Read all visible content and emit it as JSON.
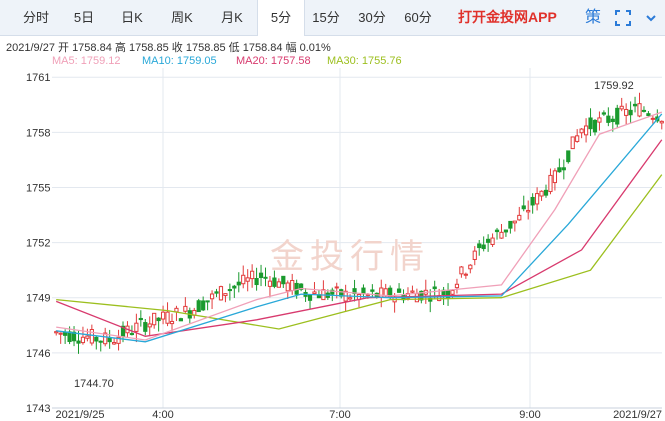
{
  "tabs": [
    {
      "label": "分时",
      "active": false
    },
    {
      "label": "5日",
      "active": false
    },
    {
      "label": "日K",
      "active": false
    },
    {
      "label": "周K",
      "active": false
    },
    {
      "label": "月K",
      "active": false
    },
    {
      "label": "5分",
      "active": true
    },
    {
      "label": "15分",
      "active": false
    },
    {
      "label": "30分",
      "active": false
    },
    {
      "label": "60分",
      "active": false
    }
  ],
  "promo_label": "打开金投网APP",
  "toolbar": {
    "strategy_label": "策",
    "strategy_icon": "strategy-icon",
    "fullscreen_icon": "fullscreen-icon"
  },
  "info": {
    "date": "2021/9/27",
    "open_label": "开",
    "open": "1758.84",
    "high_label": "高",
    "high": "1758.85",
    "close_label": "收",
    "close": "1758.85",
    "low_label": "低",
    "low": "1758.84",
    "change_label": "幅",
    "change": "0.01%"
  },
  "ma": {
    "ma5": {
      "label": "MA5:",
      "value": "1759.12",
      "color": "#f0a0b8"
    },
    "ma10": {
      "label": "MA10:",
      "value": "1759.05",
      "color": "#29a8d8"
    },
    "ma20": {
      "label": "MA20:",
      "value": "1757.58",
      "color": "#d83a6e"
    },
    "ma30": {
      "label": "MA30:",
      "value": "1755.76",
      "color": "#9cbf1e"
    }
  },
  "watermark": "金投行情",
  "colors": {
    "up": "#e23b3b",
    "down": "#1a9a2e",
    "grid": "#e3e8ef",
    "axis_text": "#333333"
  },
  "chart_data": {
    "type": "candlestick",
    "y_ticks": [
      1761,
      1758,
      1755,
      1752,
      1749,
      1746,
      1743
    ],
    "ylim": [
      1743,
      1761.5
    ],
    "x_tick_labels": [
      "2021/9/25",
      "4:00",
      "7:00",
      "9:00",
      "2021/9/27"
    ],
    "annotations": {
      "max_label": "1759.92",
      "min_label": "1744.70"
    },
    "grid": true
  }
}
